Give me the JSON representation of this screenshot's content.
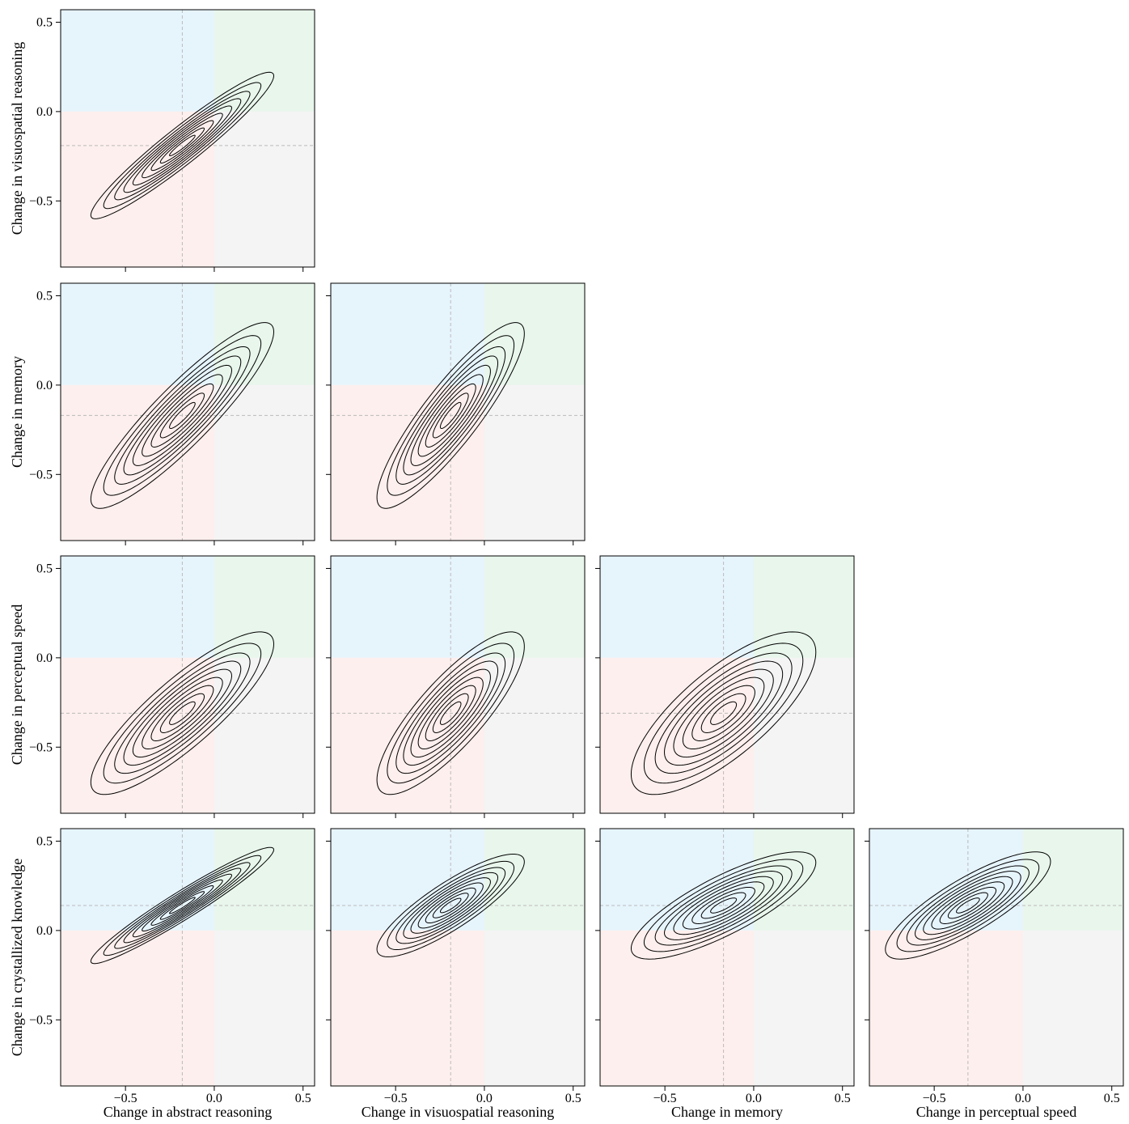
{
  "chart_data": {
    "type": "contour",
    "variables": [
      "Change in abstract reasoning",
      "Change in visuospatial reasoning",
      "Change in memory",
      "Change in perceptual speed",
      "Change in crystallized knowledge"
    ],
    "means": [
      -0.18,
      -0.19,
      -0.17,
      -0.31,
      0.14
    ],
    "xlim": [
      -0.865,
      0.565
    ],
    "ylim": [
      -0.87,
      0.57
    ],
    "xticks": [
      {
        "value": -0.5,
        "label": "−0.5"
      },
      {
        "value": 0,
        "label": "0.0"
      },
      0.5
    ],
    "yticks": [
      {
        "value": -0.5,
        "label": "−0.5"
      },
      {
        "value": 0,
        "label": "0.0"
      },
      0.5
    ],
    "levels": [
      0.35,
      0.6,
      0.85,
      1.1,
      1.35,
      1.6,
      1.85,
      2.15,
      2.5
    ],
    "quadrant_colors": [
      "#e6f4fc",
      "#e8f6ec",
      "#fdefed",
      "#f4f4f4"
    ],
    "panels": [
      {
        "x": 0,
        "y": 1,
        "sx": 0.206,
        "sy": 0.164,
        "rho": 0.95
      },
      {
        "x": 0,
        "y": 2,
        "sx": 0.206,
        "sy": 0.208,
        "rho": 0.9
      },
      {
        "x": 1,
        "y": 2,
        "sx": 0.166,
        "sy": 0.208,
        "rho": 0.88
      },
      {
        "x": 0,
        "y": 3,
        "sx": 0.206,
        "sy": 0.182,
        "rho": 0.85
      },
      {
        "x": 1,
        "y": 3,
        "sx": 0.166,
        "sy": 0.182,
        "rho": 0.82
      },
      {
        "x": 2,
        "y": 3,
        "sx": 0.208,
        "sy": 0.182,
        "rho": 0.75
      },
      {
        "x": 0,
        "y": 4,
        "sx": 0.206,
        "sy": 0.13,
        "rho": 0.96
      },
      {
        "x": 1,
        "y": 4,
        "sx": 0.166,
        "sy": 0.115,
        "rho": 0.85
      },
      {
        "x": 2,
        "y": 4,
        "sx": 0.208,
        "sy": 0.12,
        "rho": 0.8
      },
      {
        "x": 3,
        "y": 4,
        "sx": 0.186,
        "sy": 0.12,
        "rho": 0.82
      }
    ]
  }
}
